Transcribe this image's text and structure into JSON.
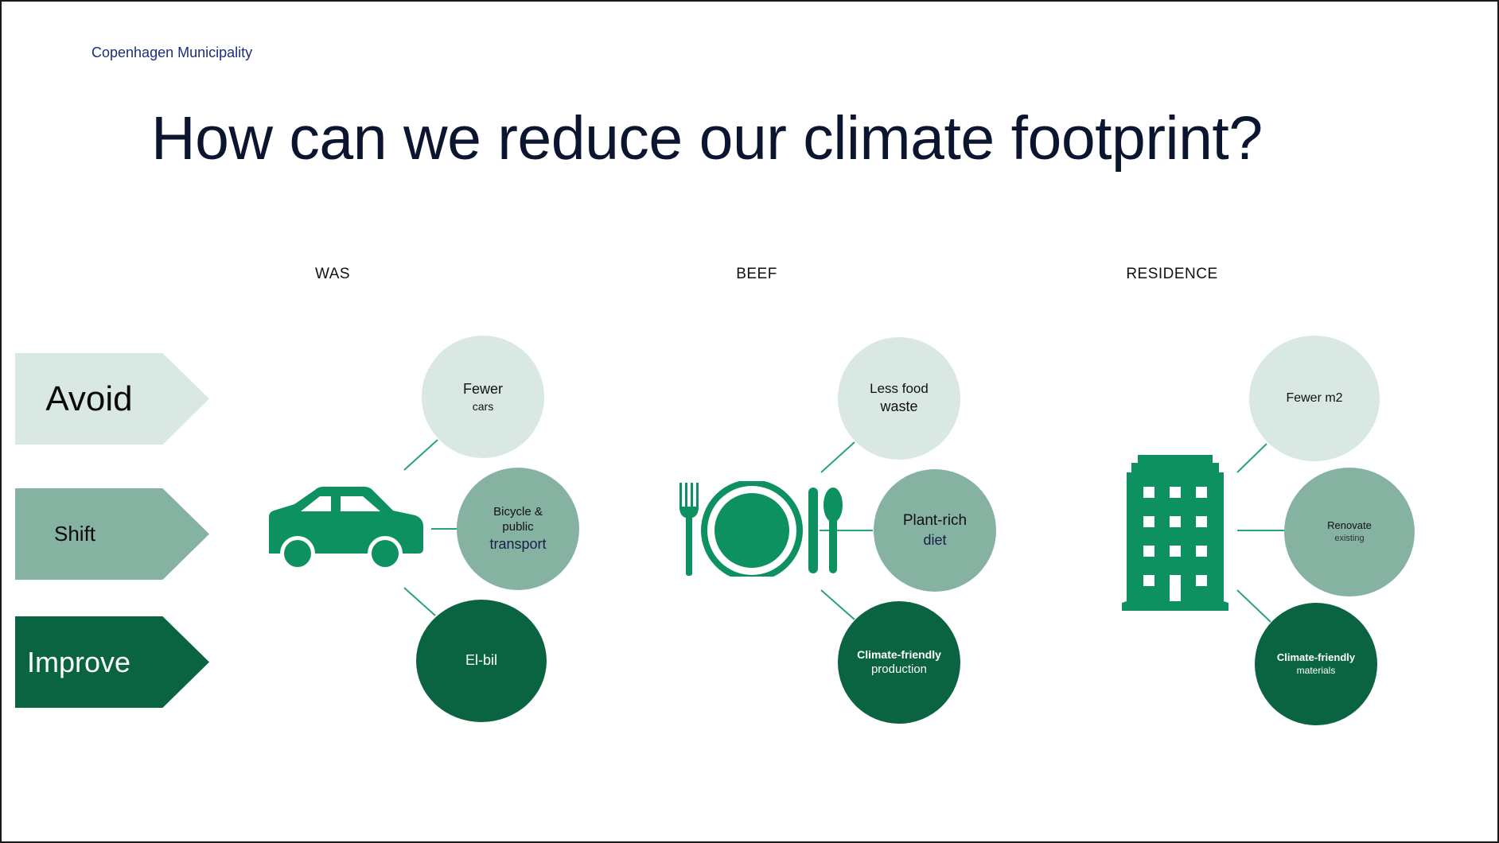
{
  "slide": {
    "organization": "Copenhagen Municipality",
    "title": "How can we reduce our climate footprint?"
  },
  "colors": {
    "avoid": "#d9e8e2",
    "shift": "#85b2a1",
    "improve": "#0a6442",
    "icon_green": "#0e9160",
    "title_navy": "#0c1530"
  },
  "rows": {
    "avoid": "Avoid",
    "shift": "Shift",
    "improve": "Improve"
  },
  "columns": [
    {
      "heading": "WAS",
      "icon": "car-icon",
      "avoid": {
        "line1": "Fewer",
        "line2": "cars"
      },
      "shift": {
        "line1": "Bicycle &",
        "line2": "public",
        "line3": "transport"
      },
      "improve": {
        "line1": "El-bil"
      }
    },
    {
      "heading": "BEEF",
      "icon": "plate-cutlery-icon",
      "avoid": {
        "line1": "Less food",
        "line2": "waste"
      },
      "shift": {
        "line1": "Plant-rich",
        "line2": "diet"
      },
      "improve": {
        "line1": "Climate-friendly",
        "line2": "production"
      }
    },
    {
      "heading": "RESIDENCE",
      "icon": "building-icon",
      "avoid": {
        "line1": "Fewer m2"
      },
      "shift": {
        "line1": "Renovate",
        "line2": "existing"
      },
      "improve": {
        "line1": "Climate-friendly",
        "line2": "materials"
      }
    }
  ]
}
